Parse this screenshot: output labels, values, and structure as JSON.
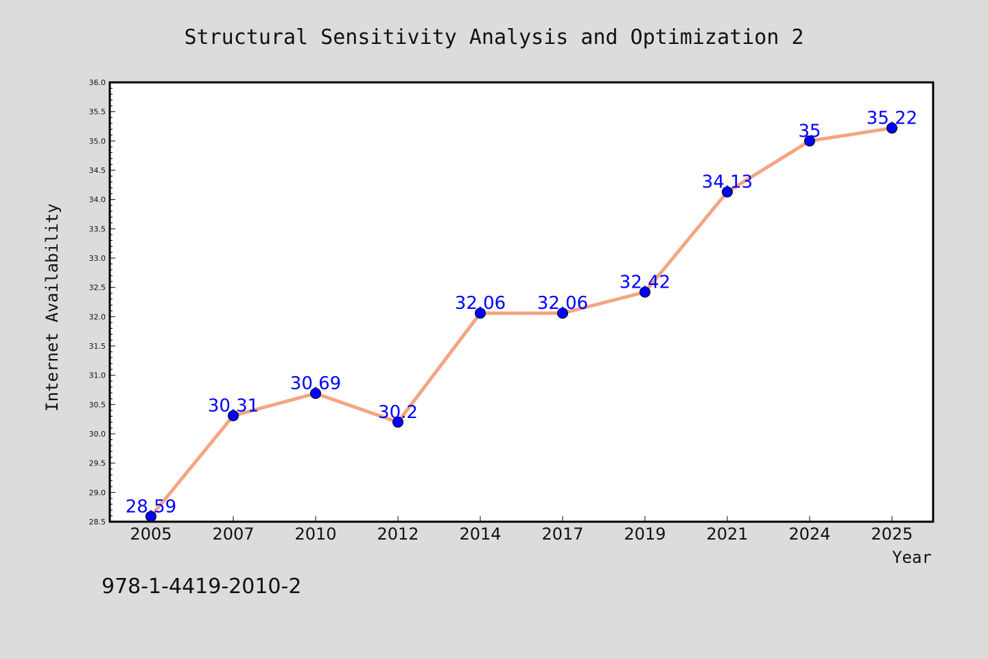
{
  "chart_data": {
    "type": "line",
    "title": "Structural Sensitivity Analysis and Optimization 2",
    "xlabel": "Year",
    "ylabel": "Internet Availability",
    "categories": [
      "2005",
      "2007",
      "2010",
      "2012",
      "2014",
      "2017",
      "2019",
      "2021",
      "2024",
      "2025"
    ],
    "series": [
      {
        "values": [
          28.59,
          30.31,
          30.69,
          30.2,
          32.06,
          32.06,
          32.42,
          34.13,
          35,
          35.22
        ],
        "labels": [
          "28.59",
          "30.31",
          "30.69",
          "30.2",
          "32.06",
          "32.06",
          "32.42",
          "34.13",
          "35",
          "35.22"
        ],
        "line_color": "#f4a582",
        "marker_color": "#0000ff"
      }
    ],
    "ylim": [
      28.5,
      36.0
    ],
    "yticks": [
      "28.5",
      "29.0",
      "29.5",
      "30.0",
      "30.5",
      "31.0",
      "31.5",
      "32.0",
      "32.5",
      "33.0",
      "33.5",
      "34.0",
      "34.5",
      "35.0",
      "35.5",
      "36.0"
    ],
    "grid": false,
    "legend": "none"
  },
  "footer": {
    "isbn": "978-1-4419-2010-2"
  },
  "colors": {
    "background": "#dcdcdc",
    "plot_background": "#ffffff",
    "label_color": "#0000ff"
  }
}
